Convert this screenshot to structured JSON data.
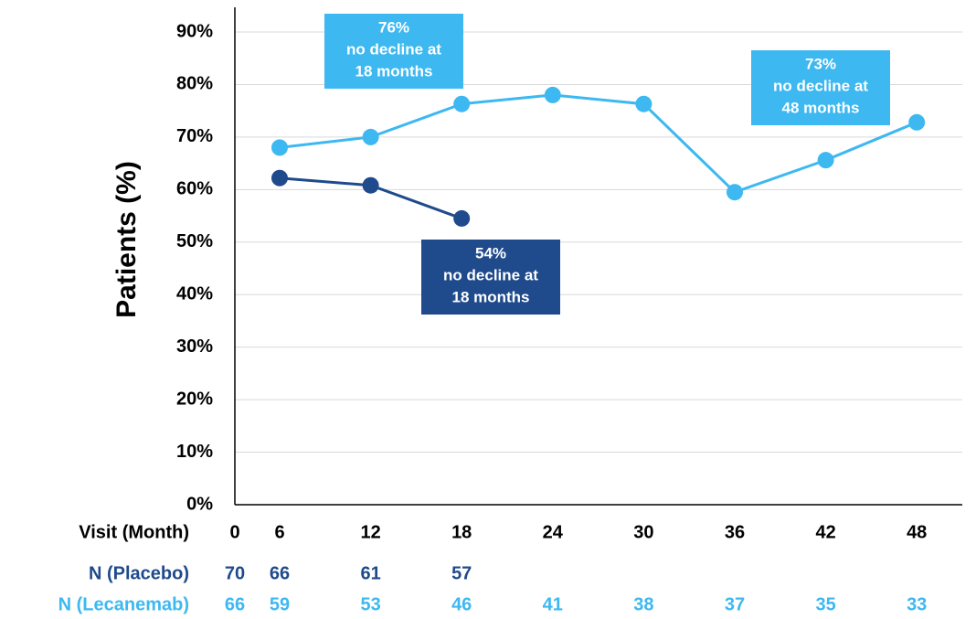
{
  "chart_data": {
    "type": "line",
    "ylabel": "Patients (%)",
    "xlabel": "Visit (Month)",
    "categories": [
      "0",
      "6",
      "12",
      "18",
      "24",
      "30",
      "36",
      "42",
      "48"
    ],
    "series": [
      {
        "color": "#3db8f1",
        "values": [
          null,
          68,
          70,
          76.3,
          78,
          76.3,
          59.5,
          65.6,
          72.8
        ]
      },
      {
        "color": "#1f4a8c",
        "values": [
          null,
          62.2,
          60.8,
          54.5,
          null,
          null,
          null,
          null,
          null
        ]
      }
    ],
    "ylim": [
      0,
      90
    ],
    "yticks": [
      {
        "value": 0,
        "label": "0%"
      },
      {
        "value": 10,
        "label": "10%"
      },
      {
        "value": 20,
        "label": "20%"
      },
      {
        "value": 30,
        "label": "30%"
      },
      {
        "value": 40,
        "label": "40%"
      },
      {
        "value": 50,
        "label": "50%"
      },
      {
        "value": 60,
        "label": "60%"
      },
      {
        "value": 70,
        "label": "70%"
      },
      {
        "value": 80,
        "label": "80%"
      },
      {
        "value": 90,
        "label": "90%"
      }
    ],
    "grid": true,
    "count_rows": [
      {
        "label": "N (Placebo)",
        "color": "#1f4a8c",
        "values": [
          70,
          66,
          61,
          57,
          null,
          null,
          null,
          null,
          null
        ]
      },
      {
        "label": "N (Lecanemab)",
        "color": "#3db8f1",
        "values": [
          66,
          59,
          53,
          46,
          41,
          38,
          37,
          35,
          33
        ]
      }
    ],
    "annotations": [
      {
        "color": "#3db8f1",
        "lines": [
          "76%",
          "no decline at",
          "18 months"
        ]
      },
      {
        "color": "#3db8f1",
        "lines": [
          "73%",
          "no decline at",
          "48 months"
        ]
      },
      {
        "color": "#1f4a8c",
        "lines": [
          "54%",
          "no decline at",
          "18 months"
        ]
      }
    ]
  }
}
